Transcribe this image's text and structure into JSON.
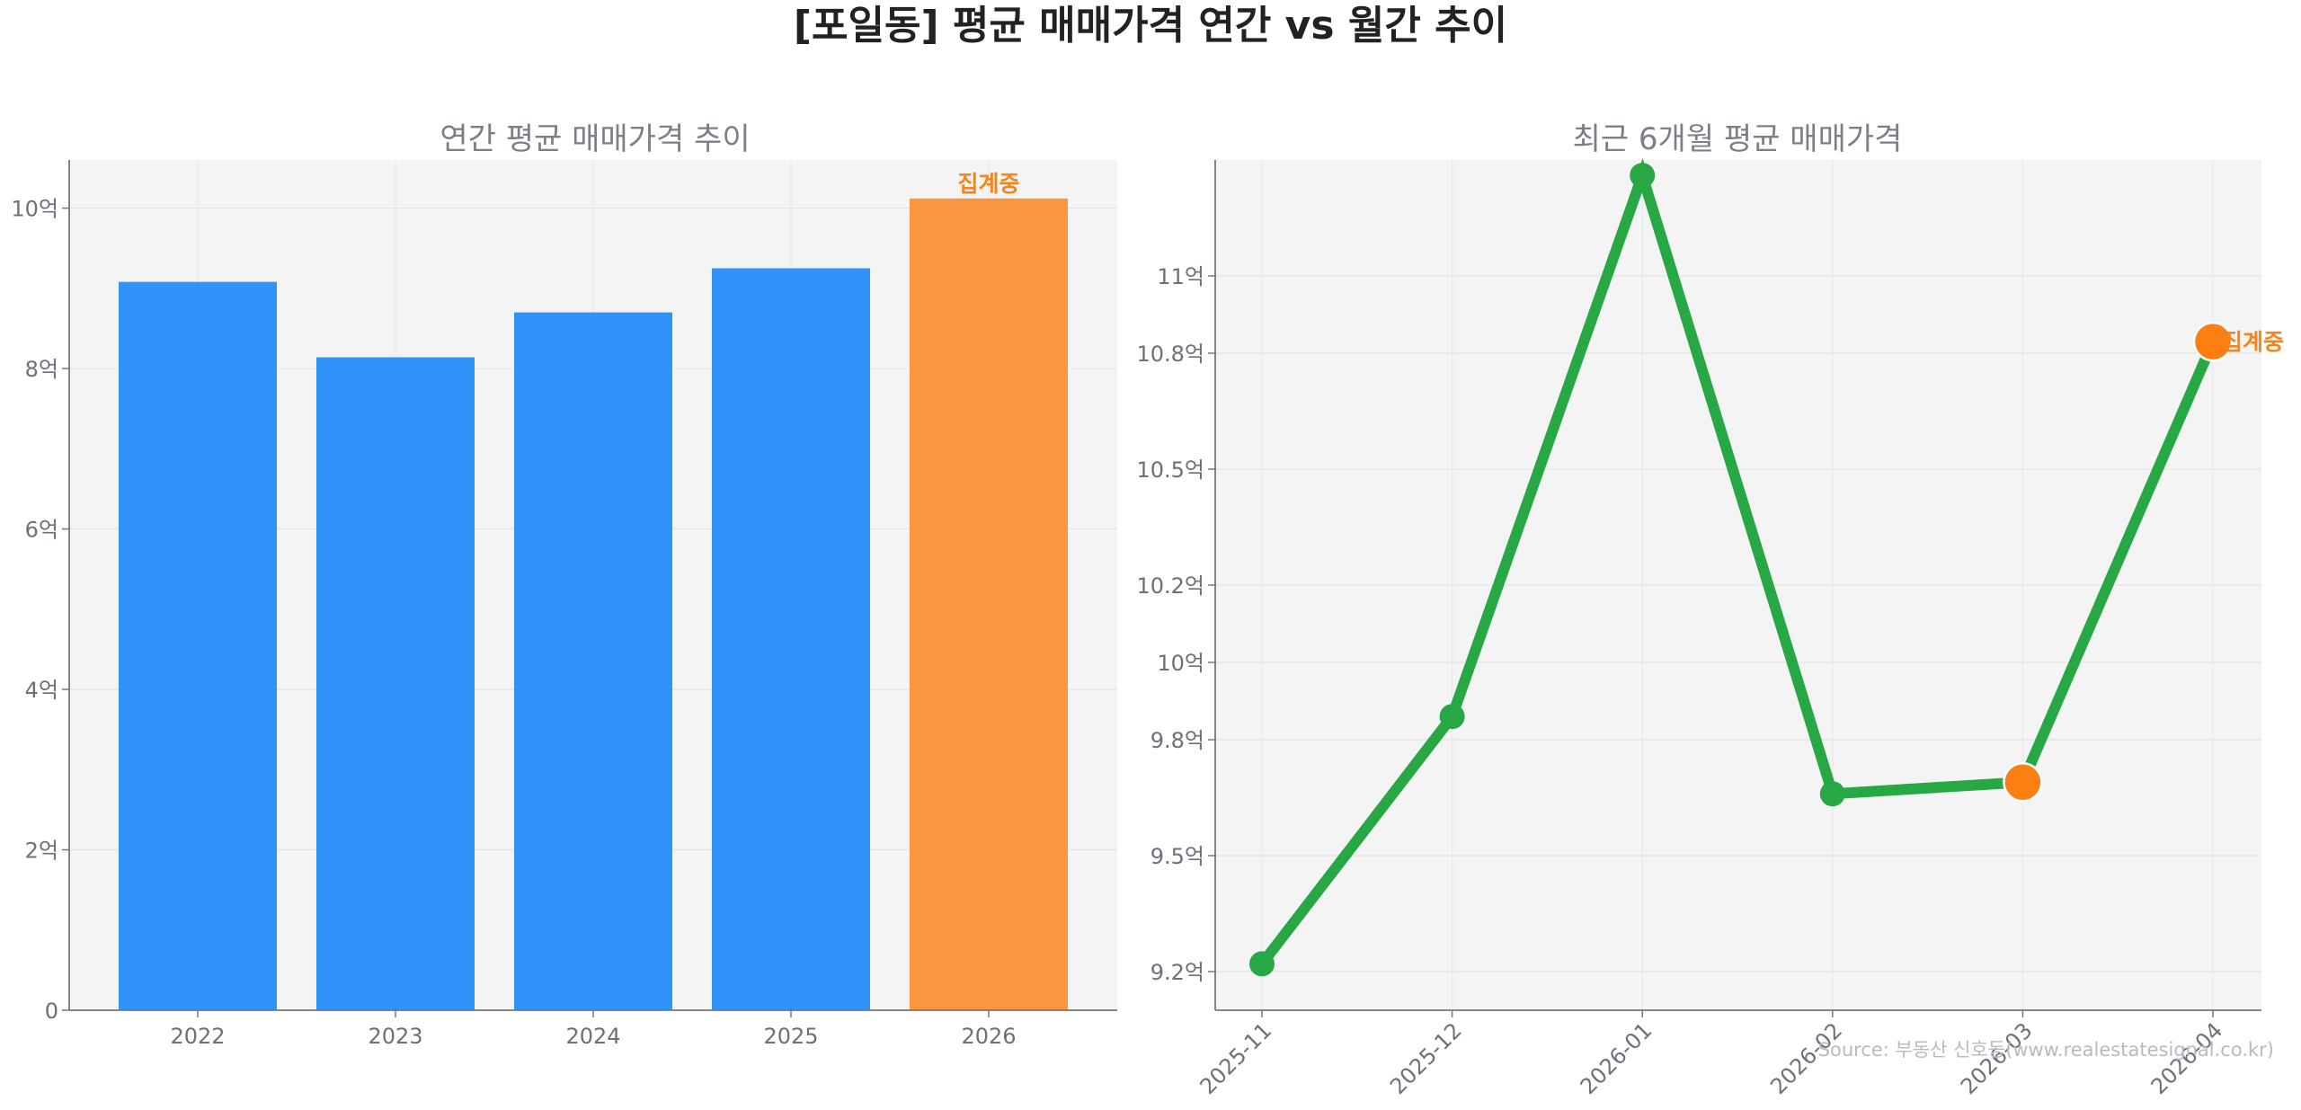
{
  "title": "[포일동] 평균 매매가격 연간 vs 월간 추이",
  "source": "Source: 부동산 신호등(www.realestatesignal.co.kr)",
  "colors": {
    "blue": "#3192fa",
    "orange": "#f9963f",
    "orange_point": "#fd7f12",
    "green": "#28a745",
    "panel_bg": "#f4f4f4"
  },
  "chart_data": [
    {
      "type": "bar",
      "title": "연간 평균 매매가격 추이",
      "categories": [
        "2022",
        "2023",
        "2024",
        "2025",
        "2026"
      ],
      "values": [
        9.08,
        8.14,
        8.7,
        9.25,
        10.12
      ],
      "unit": "억",
      "ylim": [
        0,
        10.6
      ],
      "yticks": [
        0,
        2,
        4,
        6,
        8,
        10
      ],
      "ytick_labels": [
        "0",
        "2억",
        "4억",
        "6억",
        "8억",
        "10억"
      ],
      "highlight_index": 4,
      "highlight_label": "집계중",
      "grid": true
    },
    {
      "type": "line",
      "title": "최근 6개월 평균 매매가격",
      "x": [
        "2025-11",
        "2025-12",
        "2026-01",
        "2026-02",
        "2026-03",
        "2026-04"
      ],
      "values": [
        9.22,
        9.86,
        11.26,
        9.66,
        9.69,
        10.83
      ],
      "unit": "억",
      "ylim": [
        9.1,
        11.3
      ],
      "yticks": [
        9.2,
        9.5,
        9.8,
        10.0,
        10.2,
        10.5,
        10.8,
        11.0
      ],
      "ytick_labels": [
        "9.2억",
        "9.5억",
        "9.8억",
        "10억",
        "10.2억",
        "10.5억",
        "10.8억",
        "11억"
      ],
      "highlight_indices": [
        4,
        5
      ],
      "highlight_label": "집계중",
      "grid": true
    }
  ]
}
